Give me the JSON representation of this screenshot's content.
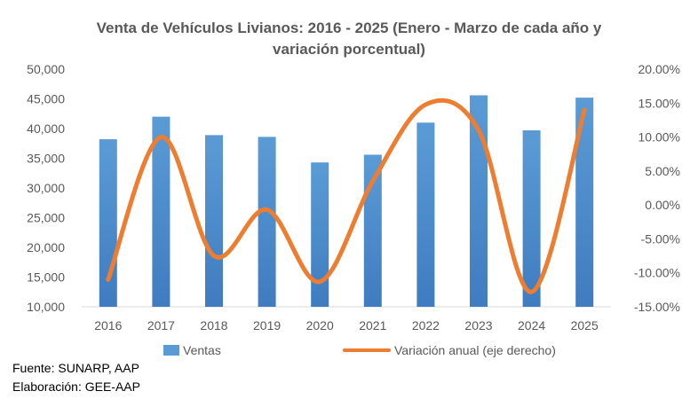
{
  "chart_data": {
    "type": "bar",
    "title_line1": "Venta de Vehículos Livianos: 2016 - 2025 (Enero - Marzo de cada año y",
    "title_line2": "variación porcentual)",
    "categories": [
      "2016",
      "2017",
      "2018",
      "2019",
      "2020",
      "2021",
      "2022",
      "2023",
      "2024",
      "2025"
    ],
    "series": [
      {
        "name": "Ventas",
        "type": "bar",
        "axis": "left",
        "color": "#5B9BD5",
        "values": [
          38200,
          42000,
          38900,
          38600,
          34300,
          35600,
          41000,
          45600,
          39700,
          45200
        ]
      },
      {
        "name": "Variación anual (eje derecho)",
        "type": "line",
        "smooth": true,
        "axis": "right",
        "color": "#ED7D31",
        "values": [
          -11.0,
          10.0,
          -7.5,
          -0.7,
          -11.3,
          3.5,
          14.8,
          11.0,
          -12.8,
          14.0
        ]
      }
    ],
    "y_left": {
      "min": 10000,
      "max": 50000,
      "step": 5000,
      "tick_labels": [
        "10,000",
        "15,000",
        "20,000",
        "25,000",
        "30,000",
        "35,000",
        "40,000",
        "45,000",
        "50,000"
      ]
    },
    "y_right": {
      "min": -15,
      "max": 20,
      "step": 5,
      "tick_labels": [
        "-15.00%",
        "-10.00%",
        "-5.00%",
        "0.00%",
        "5.00%",
        "10.00%",
        "15.00%",
        "20.00%"
      ]
    },
    "grid": false,
    "legend_position": "bottom"
  },
  "footnotes": {
    "source": "Fuente: SUNARP, AAP",
    "author": "Elaboración: GEE-AAP"
  }
}
